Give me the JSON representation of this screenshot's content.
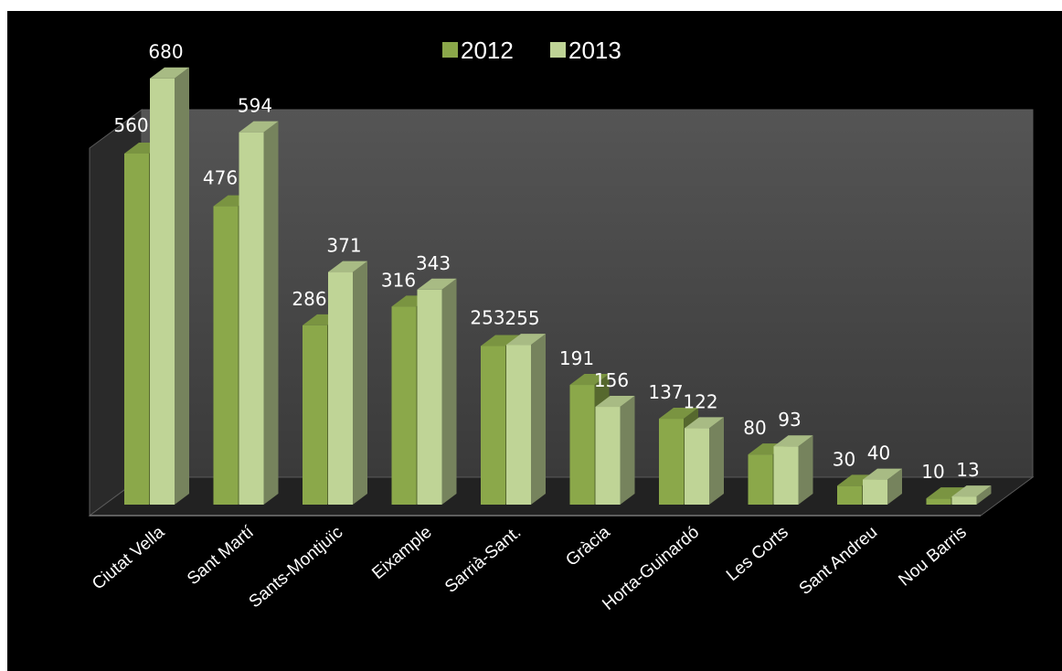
{
  "chart_data": {
    "type": "bar",
    "title": "",
    "xlabel": "",
    "ylabel": "",
    "ylim": [
      0,
      700
    ],
    "legend_position": "top-center",
    "grid": false,
    "three_d": true,
    "categories": [
      "Ciutat Vella",
      "Sant Martí",
      "Sants-Montjuïc",
      "Eixample",
      "Sarrià-Sant.",
      "Gràcia",
      "Horta-Guinardó",
      "Les Corts",
      "Sant Andreu",
      "Nou Barris"
    ],
    "series": [
      {
        "name": "2012",
        "color": "#8ba84a",
        "values": [
          560,
          476,
          286,
          316,
          253,
          191,
          137,
          80,
          30,
          10
        ]
      },
      {
        "name": "2013",
        "color": "#bfd496",
        "values": [
          680,
          594,
          371,
          343,
          255,
          156,
          122,
          93,
          40,
          13
        ]
      }
    ]
  }
}
